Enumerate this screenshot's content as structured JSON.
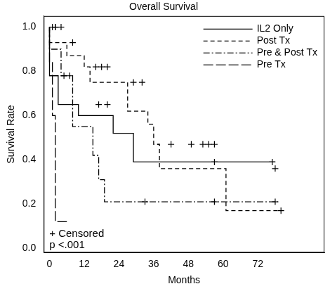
{
  "chart_data": {
    "type": "line",
    "title": "Overall Survival",
    "x_label": "Months",
    "y_label": "Survival Rate",
    "xlim": [
      -2,
      95
    ],
    "xticks": [
      0,
      12,
      24,
      36,
      48,
      60,
      72
    ],
    "ylim": [
      -0.02,
      1.05
    ],
    "yticks": [
      {
        "value": 0,
        "label": "0.0"
      },
      0.2,
      0.4,
      0.6,
      0.8,
      {
        "value": 1,
        "label": "1.0"
      }
    ],
    "grid": false,
    "legend": "upper right",
    "annotations": [
      "+ Censored",
      "p <.001"
    ],
    "series": [
      {
        "name": "IL2 Only",
        "color": "#000000",
        "line_style": "solid",
        "x": [
          0,
          3,
          10,
          22,
          29,
          35,
          78
        ],
        "values": [
          1.0,
          0.78,
          0.65,
          0.6,
          0.52,
          0.39,
          0.39
        ],
        "censored_x": [
          5,
          7,
          17,
          20,
          57,
          77
        ],
        "censored_values": [
          0.78,
          0.78,
          0.65,
          0.65,
          0.39,
          0.39
        ]
      },
      {
        "name": "Post Tx",
        "color": "#000000",
        "line_style": "dashed",
        "x": [
          0,
          6,
          12,
          14,
          27,
          34,
          36,
          38,
          61,
          79,
          80
        ],
        "values": [
          1.0,
          0.93,
          0.87,
          0.82,
          0.75,
          0.62,
          0.56,
          0.47,
          0.36,
          0.17,
          0.17
        ],
        "censored_x": [
          2,
          4,
          8,
          16,
          18,
          20,
          29,
          32,
          42,
          49,
          53,
          55,
          57,
          78,
          80
        ],
        "censored_values": [
          1.0,
          1.0,
          0.93,
          0.82,
          0.82,
          0.82,
          0.75,
          0.75,
          0.47,
          0.47,
          0.47,
          0.47,
          0.47,
          0.36,
          0.17
        ]
      },
      {
        "name": "Pre & Post Tx",
        "color": "#000000",
        "line_style": "dashdot",
        "x": [
          0,
          4,
          8,
          15,
          17,
          19,
          22,
          79
        ],
        "values": [
          1.0,
          0.9,
          0.78,
          0.55,
          0.42,
          0.31,
          0.21,
          0.21
        ],
        "censored_x": [
          1,
          2,
          33,
          57,
          78
        ],
        "censored_values": [
          1.0,
          1.0,
          0.21,
          0.21,
          0.21
        ]
      },
      {
        "name": "Pre Tx",
        "color": "#000000",
        "line_style": "longdash",
        "x": [
          0,
          1,
          2,
          5,
          6
        ],
        "values": [
          1.0,
          0.84,
          0.6,
          0.12,
          0.12
        ],
        "censored_x": [],
        "censored_values": []
      }
    ]
  }
}
